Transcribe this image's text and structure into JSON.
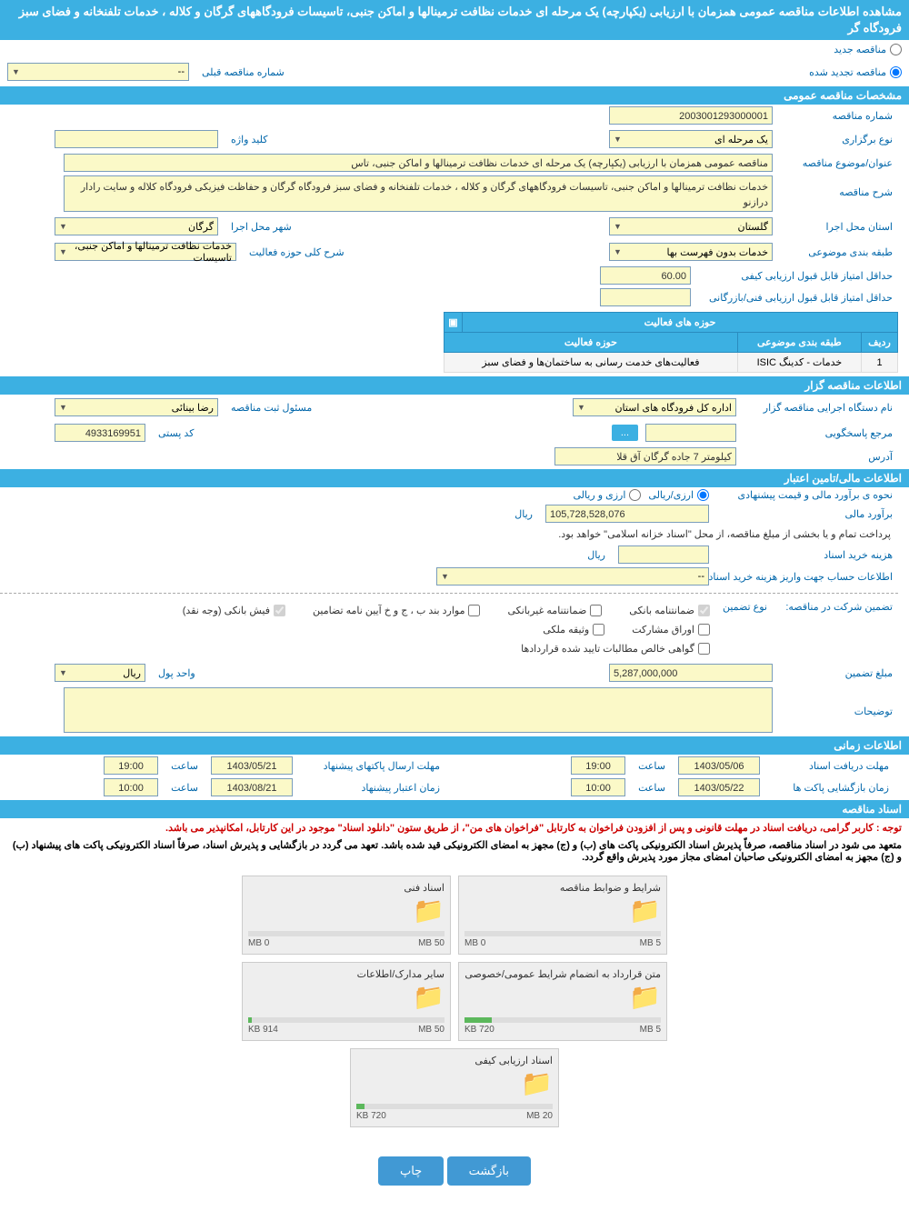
{
  "header": {
    "title": "مشاهده اطلاعات مناقصه عمومی همزمان با ارزیابی (یکپارچه) یک مرحله ای خدمات نظافت ترمینالها و اماکن جنبی، تاسیسات فرودگاههای گرگان و کلاله ، خدمات تلفنخانه و فضای سبز فرودگاه گر"
  },
  "top_radios": {
    "new": "مناقصه جدید",
    "renewed": "مناقصه تجدید شده",
    "prev_label": "شماره مناقصه قبلی",
    "prev_value": "--"
  },
  "sections": {
    "general": "مشخصات مناقصه عمومی",
    "organizer": "اطلاعات مناقصه گزار",
    "financial": "اطلاعات مالی/تامین اعتبار",
    "timing": "اطلاعات زمانی",
    "documents": "اسناد مناقصه"
  },
  "general": {
    "tender_no_label": "شماره مناقصه",
    "tender_no": "2003001293000001",
    "type_label": "نوع برگزاری",
    "type_value": "یک مرحله ای",
    "keyword_label": "کلید واژه",
    "keyword_value": "",
    "subject_label": "عنوان/موضوع مناقصه",
    "subject_value": "مناقصه عمومی همزمان با ارزیابی (یکپارچه) یک مرحله ای خدمات نظافت ترمینالها و اماکن جنبی، تاس",
    "desc_label": "شرح مناقصه",
    "desc_value": "خدمات نظافت ترمینالها و اماکن جنبی، تاسیسات فرودگاههای گرگان و کلاله ، خدمات تلفنخانه و فضای سبز فرودگاه گرگان و حفاظت فیزیکی فرودگاه کلاله و سایت رادار درازنو",
    "province_label": "استان محل اجرا",
    "province_value": "گلستان",
    "city_label": "شهر محل اجرا",
    "city_value": "گرگان",
    "classification_label": "طبقه بندی موضوعی",
    "classification_value": "خدمات بدون فهرست بها",
    "scope_label": "شرح کلی حوزه فعالیت",
    "scope_value": "خدمات نظافت ترمینالها و اماکن جنبی، تاسیسات",
    "min_quality_label": "حداقل امتیاز قابل قبول ارزیابی کیفی",
    "min_quality_value": "60.00",
    "min_tech_label": "حداقل امتیاز قابل قبول ارزیابی فنی/بازرگانی",
    "min_tech_value": ""
  },
  "activity_table": {
    "title": "حوزه های فعالیت",
    "col_row": "ردیف",
    "col_class": "طبقه بندی موضوعی",
    "col_scope": "حوزه فعالیت",
    "rows": [
      {
        "n": "1",
        "class": "خدمات - کدینگ ISIC",
        "scope": "فعالیت‌های خدمت رسانی به ساختمان‌ها و فضای سبز"
      }
    ]
  },
  "organizer": {
    "exec_label": "نام دستگاه اجرایی مناقصه گزار",
    "exec_value": "اداره کل فرودگاه های استان",
    "registrar_label": "مسئول ثبت مناقصه",
    "registrar_value": "رضا بینائی",
    "responder_label": "مرجع پاسخگویی",
    "responder_value": "",
    "btn_more": "...",
    "postal_label": "کد پستی",
    "postal_value": "4933169951",
    "address_label": "آدرس",
    "address_value": "کیلومتر 7 جاده گرگان آق قلا"
  },
  "financial": {
    "method_label": "نحوه ی برآورد مالی و قیمت پیشنهادی",
    "currency_rial": "ارزی/ریالی",
    "currency_foreign": "ارزی و ریالی",
    "estimate_label": "برآورد مالی",
    "estimate_value": "105,728,528,076",
    "estimate_unit": "ریال",
    "payment_note": "پرداخت تمام و یا بخشی از مبلغ مناقصه، از محل \"اسناد خزانه اسلامی\" خواهد بود.",
    "doc_cost_label": "هزینه خرید اسناد",
    "doc_cost_value": "",
    "doc_cost_unit": "ریال",
    "account_label": "اطلاعات حساب جهت واریز هزینه خرید اسناد",
    "account_value": "--",
    "guarantee_label": "تضمین شرکت در مناقصه:",
    "guarantee_type_label": "نوع تضمین",
    "gt_bank": "ضمانتنامه بانکی",
    "gt_nonbank": "ضمانتنامه غیربانکی",
    "gt_bond": "موارد بند ب ، ج و خ آیین نامه تضامین",
    "gt_cash": "فیش بانکی (وجه نقد)",
    "gt_securities": "اوراق مشارکت",
    "gt_property": "وثیقه ملکی",
    "gt_receivables": "گواهی خالص مطالبات تایید شده قراردادها",
    "guarantee_amount_label": "مبلغ تضمین",
    "guarantee_amount": "5,287,000,000",
    "currency_label": "واحد پول",
    "currency_value": "ریال",
    "notes_label": "توضیحات",
    "notes_value": ""
  },
  "timing": {
    "receive_label": "مهلت دریافت اسناد",
    "receive_date": "1403/05/06",
    "hour_label": "ساعت",
    "receive_hour": "19:00",
    "submit_label": "مهلت ارسال پاکتهای پیشنهاد",
    "submit_date": "1403/05/21",
    "submit_hour": "19:00",
    "open_label": "زمان بازگشایی پاکت ها",
    "open_date": "1403/05/22",
    "open_hour": "10:00",
    "validity_label": "زمان اعتبار پیشنهاد",
    "validity_date": "1403/08/21",
    "validity_hour": "10:00"
  },
  "documents": {
    "notice1": "توجه : کاربر گرامی، دریافت اسناد در مهلت قانونی و پس از افزودن فراخوان به کارتابل \"فراخوان های من\"، از طریق ستون \"دانلود اسناد\" موجود در این کارتابل، امکانپذیر می باشد.",
    "notice2": "متعهد می شود در اسناد مناقصه، صرفاً پذیرش اسناد الکترونیکی پاکت های (ب) و (ج) مجهز به امضای الکترونیکی قید شده باشد. تعهد می گردد در بازگشایی و پذیرش اسناد، صرفاً اسناد الکترونیکی پاکت های پیشنهاد (ب) و (ج) مجهز به امضای الکترونیکی صاحبان امضای مجاز مورد پذیرش واقع گردد.",
    "boxes": [
      {
        "title": "شرایط و ضوابط مناقصه",
        "used": "0 MB",
        "total": "5 MB",
        "percent": 0
      },
      {
        "title": "اسناد فنی",
        "used": "0 MB",
        "total": "50 MB",
        "percent": 0
      },
      {
        "title": "متن قرارداد به انضمام شرایط عمومی/خصوصی",
        "used": "720 KB",
        "total": "5 MB",
        "percent": 14
      },
      {
        "title": "سایر مدارک/اطلاعات",
        "used": "914 KB",
        "total": "50 MB",
        "percent": 2
      },
      {
        "title": "اسناد ارزیابی کیفی",
        "used": "720 KB",
        "total": "20 MB",
        "percent": 4
      }
    ]
  },
  "buttons": {
    "back": "بازگشت",
    "print": "چاپ"
  }
}
